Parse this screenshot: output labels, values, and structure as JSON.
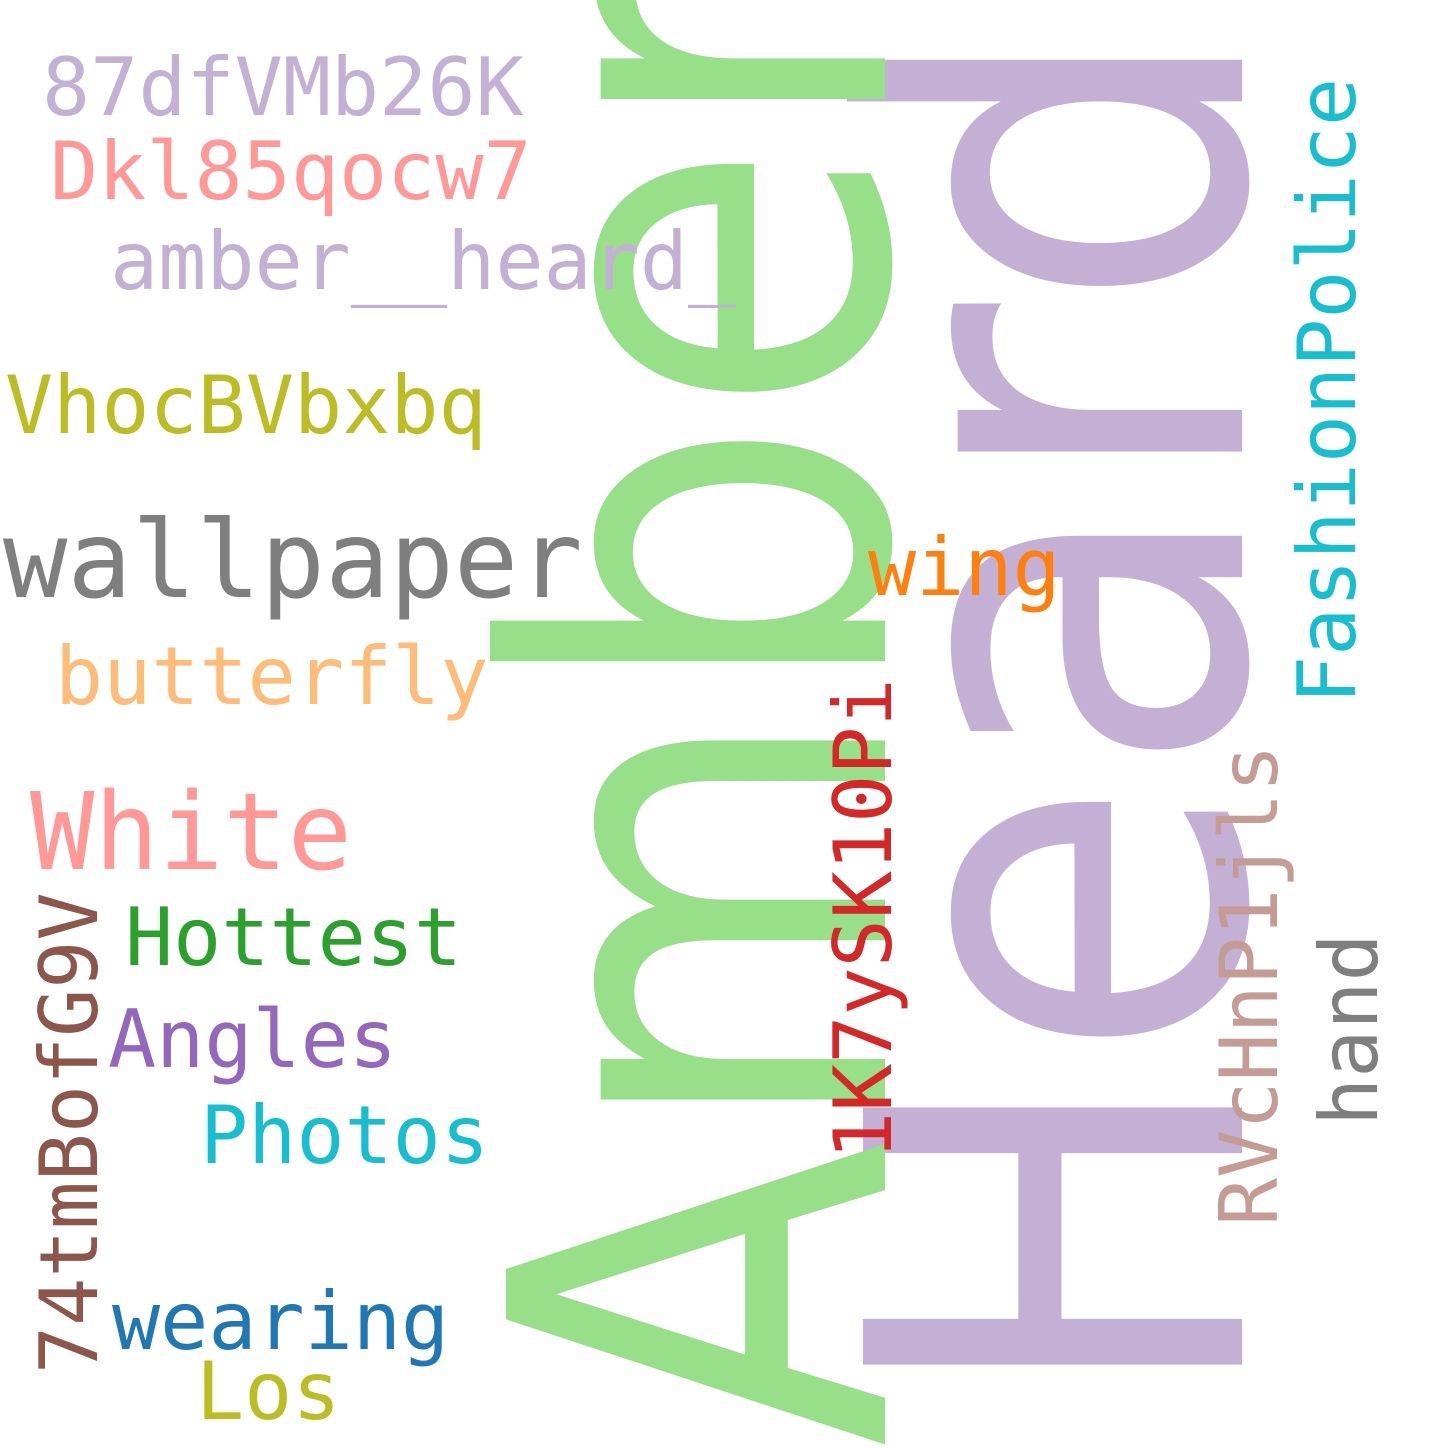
{
  "words": {
    "heard": {
      "text": "Heard",
      "color": "#c5b0d5"
    },
    "amber": {
      "text": "Amber",
      "color": "#98df8a"
    },
    "w87dfVMb26K": {
      "text": "87dfVMb26K",
      "color": "#c5b0d5"
    },
    "dkl85qocw7": {
      "text": "Dkl85qocw7",
      "color": "#ff9896"
    },
    "amber_heard": {
      "text": "amber__heard_",
      "color": "#c5b0d5"
    },
    "vhocbvbxbq": {
      "text": "VhocBVbxbq",
      "color": "#bcbd22"
    },
    "wallpaper": {
      "text": "wallpaper",
      "color": "#7f7f7f"
    },
    "butterfly": {
      "text": "butterfly",
      "color": "#ffbb78"
    },
    "white": {
      "text": "White",
      "color": "#ff9896"
    },
    "hottest": {
      "text": "Hottest",
      "color": "#2ca02c"
    },
    "angles": {
      "text": "Angles",
      "color": "#9467bd"
    },
    "photos": {
      "text": "Photos",
      "color": "#17becf"
    },
    "wearing": {
      "text": "wearing",
      "color": "#1f77b4"
    },
    "los": {
      "text": "Los",
      "color": "#bcbd22"
    },
    "w74tmbofg9v": {
      "text": "74tmBofG9V",
      "color": "#8c564b"
    },
    "wing": {
      "text": "wing",
      "color": "#ff7f0e"
    },
    "fashionpolice": {
      "text": "FashionPolice",
      "color": "#17becf"
    },
    "w1k7ysk10pi": {
      "text": "1K7ySK10Pi",
      "color": "#d62728"
    },
    "rvchnp1jls": {
      "text": "RVcHnP1jls",
      "color": "#c49c94"
    },
    "hand": {
      "text": "hand",
      "color": "#7f7f7f"
    }
  }
}
